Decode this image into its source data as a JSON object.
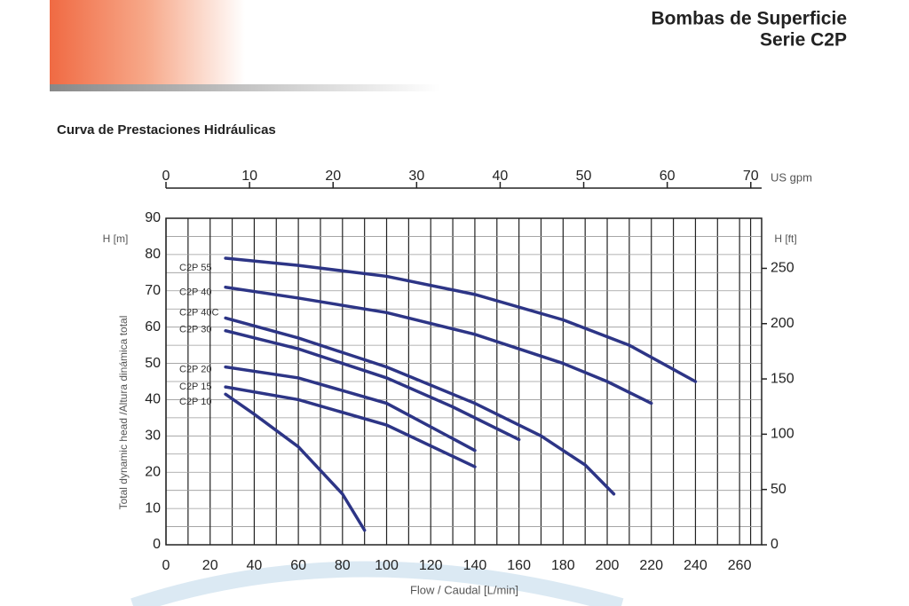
{
  "header": {
    "title": "Bombas de Superficie",
    "subtitle": "Serie C2P"
  },
  "section_title": "Curva de Prestaciones Hidráulicas",
  "chart_data": {
    "type": "line",
    "xlabel": "Flow / Caudal [L/min]",
    "ylabel": "Total dynamic head /Altura dinámica total",
    "y_unit": "H [m]",
    "y2_unit": "H [ft]",
    "x2_unit": "US gpm",
    "xlim": [
      0,
      270
    ],
    "xticks": [
      0,
      20,
      40,
      60,
      80,
      100,
      120,
      140,
      160,
      180,
      200,
      220,
      240,
      260
    ],
    "ylim": [
      0,
      90
    ],
    "yticks": [
      0,
      10,
      20,
      30,
      40,
      50,
      60,
      70,
      80,
      90
    ],
    "x2lim": [
      0,
      71.3
    ],
    "x2ticks": [
      0,
      10,
      20,
      30,
      40,
      50,
      60,
      70
    ],
    "y2lim": [
      0,
      295.3
    ],
    "y2ticks": [
      0,
      50,
      100,
      150,
      200,
      250
    ],
    "grid": true,
    "color": "#2d3586",
    "series": [
      {
        "name": "C2P 55",
        "x": [
          27,
          60,
          100,
          140,
          180,
          210,
          240
        ],
        "values": [
          79,
          77,
          74,
          69,
          62,
          55,
          45
        ]
      },
      {
        "name": "C2P 40",
        "x": [
          27,
          60,
          100,
          140,
          180,
          200,
          220
        ],
        "values": [
          71,
          68,
          64,
          58,
          50,
          45,
          39
        ]
      },
      {
        "name": "C2P 40C",
        "x": [
          27,
          60,
          100,
          140,
          170,
          190,
          203
        ],
        "values": [
          62.5,
          57,
          49,
          39,
          30,
          22,
          14
        ]
      },
      {
        "name": "C2P 30",
        "x": [
          27,
          60,
          100,
          130,
          160
        ],
        "values": [
          59,
          54,
          46,
          38,
          29
        ]
      },
      {
        "name": "C2P 20",
        "x": [
          27,
          60,
          100,
          140
        ],
        "values": [
          49,
          46,
          39,
          26
        ]
      },
      {
        "name": "C2P 15",
        "x": [
          27,
          60,
          100,
          140
        ],
        "values": [
          43.5,
          40,
          33,
          21.5
        ]
      },
      {
        "name": "C2P 10",
        "x": [
          27,
          40,
          60,
          80,
          90
        ],
        "values": [
          41.5,
          36,
          27,
          14,
          4
        ]
      }
    ]
  }
}
